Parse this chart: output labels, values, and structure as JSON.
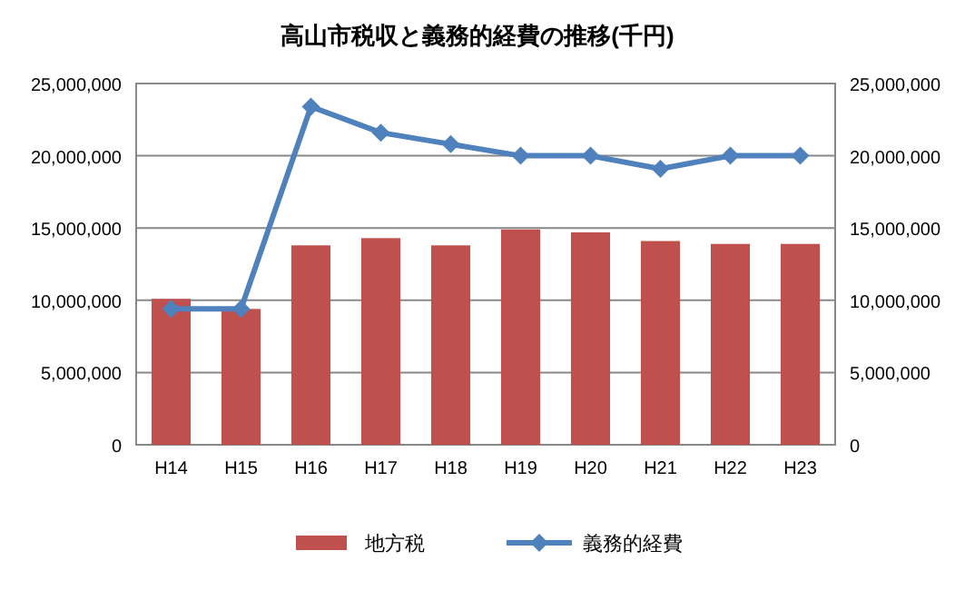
{
  "chart_data": {
    "type": "bar",
    "title": "高山市税収と義務的経費の推移(千円)",
    "categories": [
      "H14",
      "H15",
      "H16",
      "H17",
      "H18",
      "H19",
      "H20",
      "H21",
      "H22",
      "H23"
    ],
    "series": [
      {
        "name": "地方税",
        "color": "#c0504d",
        "values": [
          10100000,
          9400000,
          13800000,
          14300000,
          13800000,
          14900000,
          14700000,
          14100000,
          13900000,
          13900000
        ]
      },
      {
        "name": "義務的経費",
        "type": "line",
        "axis": "y2",
        "color": "#4f81bd",
        "marker": "diamond",
        "values": [
          9400000,
          9400000,
          23400000,
          21600000,
          20800000,
          20000000,
          20000000,
          19100000,
          20000000,
          20000000
        ]
      }
    ],
    "ylim": [
      0,
      25000000
    ],
    "yticks": [
      {
        "value": 0,
        "label": "0"
      },
      {
        "value": 5000000,
        "label": "5,000,000"
      },
      {
        "value": 10000000,
        "label": "10,000,000"
      },
      {
        "value": 15000000,
        "label": "15,000,000"
      },
      {
        "value": 20000000,
        "label": "20,000,000"
      },
      {
        "value": 25000000,
        "label": "25,000,000"
      }
    ],
    "y2lim": [
      0,
      25000000
    ],
    "y2ticks": [
      {
        "value": 0,
        "label": "0"
      },
      {
        "value": 5000000,
        "label": "5,000,000"
      },
      {
        "value": 10000000,
        "label": "10,000,000"
      },
      {
        "value": 15000000,
        "label": "15,000,000"
      },
      {
        "value": 20000000,
        "label": "20,000,000"
      },
      {
        "value": 25000000,
        "label": "25,000,000"
      }
    ],
    "grid": "y",
    "legend": "bottom"
  }
}
